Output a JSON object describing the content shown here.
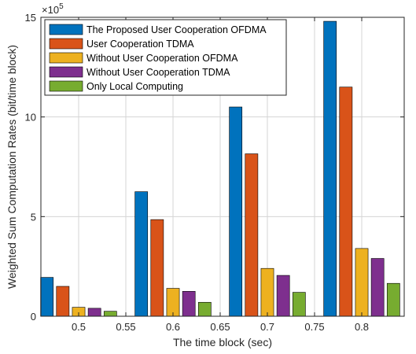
{
  "chart_data": {
    "type": "bar",
    "title": "",
    "xlabel": "The time block (sec)",
    "ylabel": "Weighted Sum Computation Rates (bit/time block)",
    "x_ticks": [
      "0.5",
      "0.55",
      "0.6",
      "0.65",
      "0.7",
      "0.75",
      "0.8"
    ],
    "x_tick_values": [
      0.5,
      0.55,
      0.6,
      0.65,
      0.7,
      0.75,
      0.8
    ],
    "xlim": [
      0.46,
      0.845
    ],
    "categories": [
      0.5,
      0.6,
      0.7,
      0.8
    ],
    "ylim": [
      0,
      15
    ],
    "y_ticks": [
      "0",
      "5",
      "10",
      "15"
    ],
    "y_tick_values": [
      0,
      5,
      10,
      15
    ],
    "y_multiplier_base": "×10",
    "y_multiplier_exp": "5",
    "series": [
      {
        "name": "The Proposed User Cooperation OFDMA",
        "color": "#0072BD",
        "values": [
          1.95,
          6.25,
          10.5,
          14.8
        ]
      },
      {
        "name": "User Cooperation TDMA",
        "color": "#D95319",
        "values": [
          1.5,
          4.85,
          8.15,
          11.5
        ]
      },
      {
        "name": "Without User Cooperation OFDMA",
        "color": "#EDB120",
        "values": [
          0.45,
          1.4,
          2.4,
          3.4
        ]
      },
      {
        "name": "Without User Cooperation TDMA",
        "color": "#7E2F8E",
        "values": [
          0.4,
          1.25,
          2.05,
          2.9
        ]
      },
      {
        "name": "Only Local Computing",
        "color": "#77AC30",
        "values": [
          0.25,
          0.7,
          1.2,
          1.65
        ]
      }
    ],
    "legend_position": "top-left",
    "grid": true
  }
}
